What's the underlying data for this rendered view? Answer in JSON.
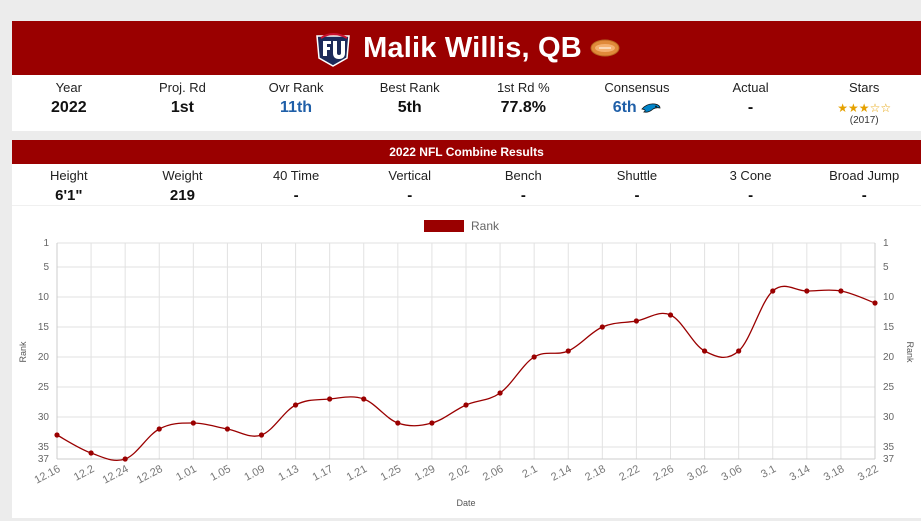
{
  "player": {
    "name": "Malik Willis, QB"
  },
  "stats": [
    {
      "label": "Year",
      "value": "2022"
    },
    {
      "label": "Proj. Rd",
      "value": "1st"
    },
    {
      "label": "Ovr Rank",
      "value": "11th"
    },
    {
      "label": "Best Rank",
      "value": "5th"
    },
    {
      "label": "1st Rd %",
      "value": "77.8%"
    },
    {
      "label": "Consensus",
      "value": "6th"
    },
    {
      "label": "Actual",
      "value": "-"
    },
    {
      "label": "Stars",
      "value": "",
      "rating": 3,
      "max": 5,
      "sub": "(2017)"
    }
  ],
  "combine": {
    "title": "2022 NFL Combine Results",
    "items": [
      {
        "label": "Height",
        "value": "6'1\""
      },
      {
        "label": "Weight",
        "value": "219"
      },
      {
        "label": "40 Time",
        "value": "-"
      },
      {
        "label": "Vertical",
        "value": "-"
      },
      {
        "label": "Bench",
        "value": "-"
      },
      {
        "label": "Shuttle",
        "value": "-"
      },
      {
        "label": "3 Cone",
        "value": "-"
      },
      {
        "label": "Broad Jump",
        "value": "-"
      }
    ]
  },
  "colors": {
    "accent": "#9a0000",
    "link": "#1f5fa8",
    "star": "#e5a100"
  },
  "chart_data": {
    "type": "line",
    "legend": "Rank",
    "legend_position": "top",
    "xlabel": "Date",
    "ylabel": "Rank",
    "ylim": [
      1,
      37
    ],
    "y_reversed": true,
    "yticks": [
      1,
      5,
      10,
      15,
      20,
      25,
      30,
      35,
      37
    ],
    "grid": true,
    "x": [
      "12.16",
      "12.2",
      "12.24",
      "12.28",
      "1.01",
      "1.05",
      "1.09",
      "1.13",
      "1.17",
      "1.21",
      "1.25",
      "1.29",
      "2.02",
      "2.06",
      "2.1",
      "2.14",
      "2.18",
      "2.22",
      "2.26",
      "3.02",
      "3.06",
      "3.1",
      "3.14",
      "3.18",
      "3.22"
    ],
    "series": [
      {
        "name": "Rank",
        "color": "#9a0000",
        "values": [
          33,
          36,
          37,
          32,
          31,
          32,
          33,
          28,
          27,
          27,
          31,
          31,
          28,
          26,
          20,
          19,
          15,
          14,
          13,
          19,
          19,
          9,
          9,
          9,
          11
        ]
      }
    ]
  }
}
